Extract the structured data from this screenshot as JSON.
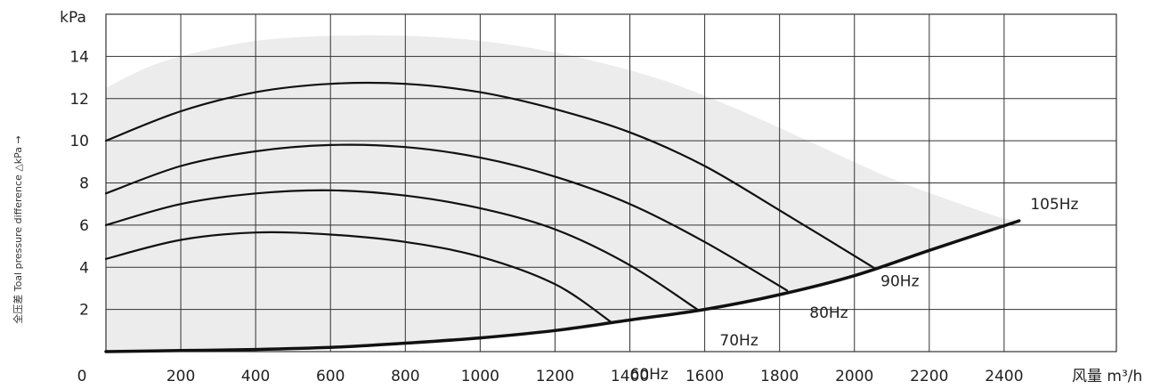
{
  "chart_data": {
    "type": "line",
    "title": "",
    "y_unit": "kPa",
    "ylabel": "全压差  Toal pressure difference  △kPa →",
    "xlabel": "风量 m³/h",
    "x_origin_label": "0",
    "xlim": [
      0,
      2700
    ],
    "ylim": [
      0,
      16
    ],
    "x_ticks": [
      200,
      400,
      600,
      800,
      1000,
      1200,
      1400,
      1600,
      1800,
      2000,
      2200,
      2400
    ],
    "y_ticks": [
      2,
      4,
      6,
      8,
      10,
      12,
      14
    ],
    "grid": true,
    "colors": {
      "curve": "#111111",
      "region": "#ececec",
      "grid": "#333333"
    },
    "operating_region_boundary": [
      {
        "x": 0,
        "y": 12.5
      },
      {
        "x": 100,
        "y": 13.4
      },
      {
        "x": 200,
        "y": 14.0
      },
      {
        "x": 350,
        "y": 14.6
      },
      {
        "x": 500,
        "y": 14.9
      },
      {
        "x": 700,
        "y": 15.0
      },
      {
        "x": 900,
        "y": 14.9
      },
      {
        "x": 1100,
        "y": 14.5
      },
      {
        "x": 1300,
        "y": 13.8
      },
      {
        "x": 1500,
        "y": 12.8
      },
      {
        "x": 1700,
        "y": 11.4
      },
      {
        "x": 1900,
        "y": 9.8
      },
      {
        "x": 2100,
        "y": 8.2
      },
      {
        "x": 2300,
        "y": 6.9
      },
      {
        "x": 2400,
        "y": 6.3
      }
    ],
    "series": [
      {
        "name": "60Hz",
        "label_pos": [
          1400,
          -1.3
        ],
        "points": [
          {
            "x": 0,
            "y": 4.4
          },
          {
            "x": 200,
            "y": 5.3
          },
          {
            "x": 400,
            "y": 5.65
          },
          {
            "x": 600,
            "y": 5.55
          },
          {
            "x": 800,
            "y": 5.2
          },
          {
            "x": 1000,
            "y": 4.5
          },
          {
            "x": 1200,
            "y": 3.2
          },
          {
            "x": 1350,
            "y": 1.4
          }
        ]
      },
      {
        "name": "70Hz",
        "label_pos": [
          1640,
          0.3
        ],
        "points": [
          {
            "x": 0,
            "y": 6.0
          },
          {
            "x": 200,
            "y": 7.0
          },
          {
            "x": 400,
            "y": 7.5
          },
          {
            "x": 600,
            "y": 7.65
          },
          {
            "x": 800,
            "y": 7.4
          },
          {
            "x": 1000,
            "y": 6.8
          },
          {
            "x": 1200,
            "y": 5.8
          },
          {
            "x": 1400,
            "y": 4.1
          },
          {
            "x": 1580,
            "y": 2.0
          }
        ]
      },
      {
        "name": "80Hz",
        "label_pos": [
          1880,
          1.6
        ],
        "points": [
          {
            "x": 0,
            "y": 7.5
          },
          {
            "x": 200,
            "y": 8.8
          },
          {
            "x": 400,
            "y": 9.5
          },
          {
            "x": 600,
            "y": 9.8
          },
          {
            "x": 800,
            "y": 9.7
          },
          {
            "x": 1000,
            "y": 9.2
          },
          {
            "x": 1200,
            "y": 8.3
          },
          {
            "x": 1400,
            "y": 7.0
          },
          {
            "x": 1600,
            "y": 5.2
          },
          {
            "x": 1820,
            "y": 2.9
          }
        ]
      },
      {
        "name": "90Hz",
        "label_pos": [
          2070,
          3.1
        ],
        "points": [
          {
            "x": 0,
            "y": 10.0
          },
          {
            "x": 200,
            "y": 11.4
          },
          {
            "x": 400,
            "y": 12.3
          },
          {
            "x": 600,
            "y": 12.7
          },
          {
            "x": 800,
            "y": 12.7
          },
          {
            "x": 1000,
            "y": 12.3
          },
          {
            "x": 1200,
            "y": 11.5
          },
          {
            "x": 1400,
            "y": 10.4
          },
          {
            "x": 1600,
            "y": 8.8
          },
          {
            "x": 1800,
            "y": 6.7
          },
          {
            "x": 2050,
            "y": 4.0
          }
        ]
      },
      {
        "name": "105Hz",
        "label_pos": [
          2470,
          6.75
        ],
        "points": [
          {
            "x": 0,
            "y": 0.0
          },
          {
            "x": 200,
            "y": 0.05
          },
          {
            "x": 400,
            "y": 0.1
          },
          {
            "x": 600,
            "y": 0.2
          },
          {
            "x": 800,
            "y": 0.4
          },
          {
            "x": 1000,
            "y": 0.65
          },
          {
            "x": 1200,
            "y": 1.0
          },
          {
            "x": 1400,
            "y": 1.5
          },
          {
            "x": 1600,
            "y": 2.0
          },
          {
            "x": 1800,
            "y": 2.7
          },
          {
            "x": 2000,
            "y": 3.6
          },
          {
            "x": 2200,
            "y": 4.8
          },
          {
            "x": 2440,
            "y": 6.2
          }
        ]
      }
    ]
  }
}
